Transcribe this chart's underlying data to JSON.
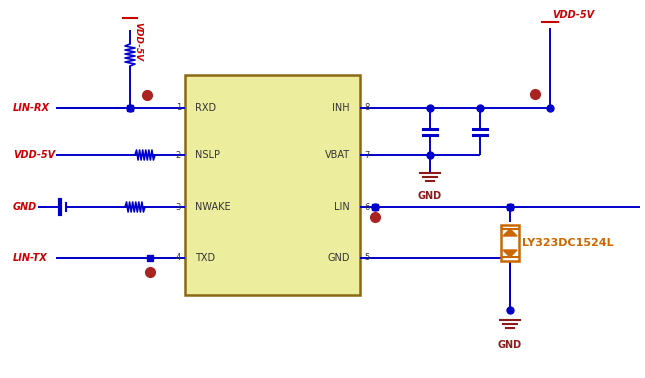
{
  "bg_color": "#ffffff",
  "wire_color": "#0000cc",
  "label_color": "#cc0000",
  "ic_fill": "#eded9e",
  "ic_edge": "#8b6914",
  "tvs_color": "#cc6600",
  "gnd_color": "#8b1a1a",
  "dot_color": "#aa2222",
  "cap_color": "#0000cc",
  "res_color": "#0000cc",
  "ic_pins_left": [
    "RXD",
    "NSLP",
    "NWAKE",
    "TXD"
  ],
  "ic_pins_right": [
    "INH",
    "VBAT",
    "LIN",
    "GND"
  ],
  "ic_pin_nums_left": [
    "1",
    "2",
    "3",
    "4"
  ],
  "ic_pin_nums_right": [
    "8",
    "7",
    "6",
    "5"
  ],
  "labels_left": [
    "LIN-RX",
    "VDD-5V",
    "GND",
    "LIN-TX"
  ],
  "vdd_label": "VDD-5V",
  "tvs_label": "LY323DC1524L",
  "gnd_label": "GND",
  "figw": 6.45,
  "figh": 3.78,
  "dpi": 100
}
